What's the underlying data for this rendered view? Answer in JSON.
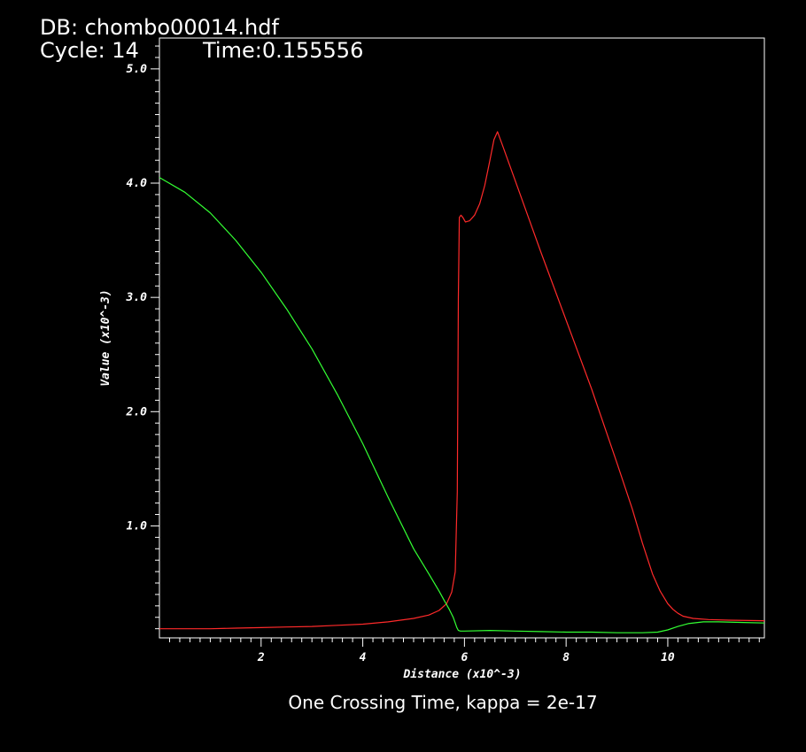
{
  "header": {
    "db": "DB: chombo00014.hdf",
    "cycle": "Cycle: 14",
    "time": "Time:0.155556"
  },
  "colors": {
    "background": "#000000",
    "axes": "#ffffff",
    "series_red": "#ff2a2a",
    "series_green": "#33ff33"
  },
  "chart_data": {
    "type": "line",
    "title": "One Crossing Time, kappa = 2e-17",
    "xlabel": "Distance (x10^-3)",
    "ylabel": "Value (x10^-3)",
    "xlim": [
      0,
      11.9
    ],
    "ylim": [
      0.02,
      5.27
    ],
    "x_ticks": [
      {
        "value": 2,
        "label": "2"
      },
      {
        "value": 4,
        "label": "4"
      },
      {
        "value": 6,
        "label": "6"
      },
      {
        "value": 8,
        "label": "8"
      },
      {
        "value": 10,
        "label": "10"
      }
    ],
    "y_ticks": [
      {
        "value": 1.0,
        "label": "1.0"
      },
      {
        "value": 2.0,
        "label": "2.0"
      },
      {
        "value": 3.0,
        "label": "3.0"
      },
      {
        "value": 4.0,
        "label": "4.0"
      },
      {
        "value": 5.0,
        "label": "5.0"
      }
    ],
    "grid": false,
    "legend": "none",
    "series": [
      {
        "color": "#ff2a2a",
        "x": [
          0.0,
          0.5,
          1.0,
          1.5,
          2.0,
          2.5,
          3.0,
          3.5,
          4.0,
          4.5,
          5.0,
          5.3,
          5.5,
          5.65,
          5.75,
          5.82,
          5.86,
          5.88,
          5.9,
          5.93,
          5.97,
          6.02,
          6.1,
          6.2,
          6.3,
          6.4,
          6.5,
          6.58,
          6.65,
          6.75,
          7.0,
          7.5,
          8.0,
          8.5,
          9.0,
          9.3,
          9.5,
          9.7,
          9.85,
          10.0,
          10.1,
          10.2,
          10.3,
          10.5,
          10.8,
          11.2,
          11.9
        ],
        "y": [
          0.1,
          0.1,
          0.1,
          0.105,
          0.11,
          0.115,
          0.12,
          0.13,
          0.14,
          0.16,
          0.19,
          0.22,
          0.26,
          0.32,
          0.42,
          0.6,
          1.3,
          3.0,
          3.7,
          3.72,
          3.7,
          3.66,
          3.67,
          3.72,
          3.82,
          3.98,
          4.2,
          4.38,
          4.45,
          4.33,
          4.02,
          3.4,
          2.8,
          2.2,
          1.55,
          1.15,
          0.85,
          0.58,
          0.43,
          0.32,
          0.27,
          0.235,
          0.21,
          0.19,
          0.18,
          0.175,
          0.17
        ]
      },
      {
        "color": "#33ff33",
        "x": [
          0.0,
          0.5,
          1.0,
          1.5,
          2.0,
          2.5,
          3.0,
          3.5,
          4.0,
          4.5,
          5.0,
          5.3,
          5.5,
          5.6,
          5.7,
          5.78,
          5.82,
          5.85,
          5.88,
          5.92,
          6.0,
          6.5,
          7.0,
          7.5,
          8.0,
          8.5,
          9.0,
          9.5,
          9.8,
          10.0,
          10.2,
          10.4,
          10.7,
          11.0,
          11.5,
          11.9
        ],
        "y": [
          4.05,
          3.92,
          3.74,
          3.5,
          3.22,
          2.9,
          2.55,
          2.15,
          1.72,
          1.25,
          0.8,
          0.58,
          0.43,
          0.35,
          0.27,
          0.2,
          0.15,
          0.11,
          0.085,
          0.08,
          0.08,
          0.085,
          0.08,
          0.075,
          0.07,
          0.07,
          0.065,
          0.065,
          0.07,
          0.09,
          0.12,
          0.145,
          0.16,
          0.16,
          0.155,
          0.15
        ]
      }
    ]
  }
}
